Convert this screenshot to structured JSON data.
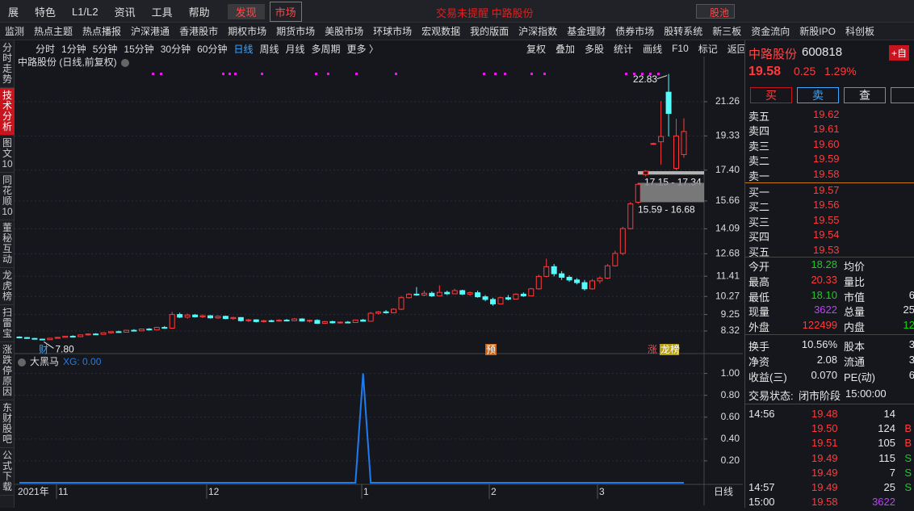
{
  "menu": [
    "展",
    "特色",
    "L1/L2",
    "资讯",
    "工具",
    "帮助",
    "发现",
    "市场"
  ],
  "marquee": "交易未提醒  中路股份",
  "search": "股池",
  "nav": [
    "监测",
    "热点主题",
    "热点播报",
    "沪深港通",
    "香港股市",
    "期权市场",
    "期货市场",
    "美股市场",
    "环球市场",
    "宏观数据",
    "我的版面",
    "沪深指数",
    "基金理财",
    "债券市场",
    "股转系统",
    "新三板",
    "资金流向",
    "新股IPO",
    "科创板"
  ],
  "periods": [
    "分时",
    "1分钟",
    "5分钟",
    "15分钟",
    "30分钟",
    "60分钟",
    "日线",
    "周线",
    "月线",
    "多周期",
    "更多 〉"
  ],
  "tools": [
    "复权",
    "叠加",
    "多股",
    "统计",
    "画线",
    "F10",
    "标记",
    "返回"
  ],
  "side_tabs": [
    "分时走势",
    "技术分析",
    "图文10",
    "同花顺10",
    "董秘互动",
    "龙虎榜",
    "扫雷宝",
    "涨跌停原因",
    "东财股吧",
    "公式下载"
  ],
  "chart_data": {
    "type": "candlestick",
    "title": "中路股份 (日线,前复权)",
    "ylim": [
      7.5,
      23.13
    ],
    "yticks": [
      21.26,
      19.33,
      {
        "value": 17.4,
        "label": "17.40"
      },
      15.66,
      14.09,
      12.68,
      11.41,
      10.27,
      9.25,
      8.32
    ],
    "up_color": "#ff3b3b",
    "down_color": "#54fcfc",
    "candles": [
      [
        7.98,
        8.02,
        7.92,
        7.95
      ],
      [
        7.95,
        7.98,
        7.88,
        7.9
      ],
      [
        7.9,
        7.93,
        7.84,
        7.86
      ],
      [
        7.86,
        7.88,
        7.8,
        7.83
      ],
      [
        7.83,
        7.93,
        7.82,
        7.91
      ],
      [
        7.91,
        7.98,
        7.89,
        7.96
      ],
      [
        7.96,
        8.04,
        7.94,
        8.02
      ],
      [
        8.02,
        8.08,
        7.98,
        8.0
      ],
      [
        8.0,
        8.12,
        7.99,
        8.1
      ],
      [
        8.1,
        8.18,
        8.06,
        8.15
      ],
      [
        8.15,
        8.2,
        8.1,
        8.13
      ],
      [
        8.13,
        8.24,
        8.11,
        8.22
      ],
      [
        8.22,
        8.3,
        8.18,
        8.28
      ],
      [
        8.28,
        8.34,
        8.22,
        8.25
      ],
      [
        8.25,
        8.38,
        8.23,
        8.36
      ],
      [
        8.36,
        8.42,
        8.3,
        8.33
      ],
      [
        8.33,
        8.45,
        8.31,
        8.43
      ],
      [
        8.43,
        8.48,
        8.35,
        8.38
      ],
      [
        8.38,
        8.55,
        8.36,
        8.52
      ],
      [
        8.52,
        8.6,
        8.45,
        8.48
      ],
      [
        8.48,
        9.4,
        8.46,
        9.25
      ],
      [
        9.25,
        9.35,
        9.05,
        9.1
      ],
      [
        9.1,
        9.3,
        9.02,
        9.22
      ],
      [
        9.22,
        9.28,
        9.08,
        9.12
      ],
      [
        9.12,
        9.25,
        9.05,
        9.18
      ],
      [
        9.18,
        9.22,
        9.02,
        9.06
      ],
      [
        9.06,
        9.2,
        9.0,
        9.15
      ],
      [
        9.15,
        9.18,
        8.98,
        9.02
      ],
      [
        9.02,
        9.12,
        8.95,
        9.08
      ],
      [
        9.08,
        9.1,
        8.85,
        8.9
      ],
      [
        8.9,
        9.0,
        8.82,
        8.95
      ],
      [
        8.95,
        8.98,
        8.8,
        8.85
      ],
      [
        8.85,
        8.95,
        8.8,
        8.9
      ],
      [
        8.9,
        8.96,
        8.82,
        8.88
      ],
      [
        8.88,
        8.98,
        8.84,
        8.93
      ],
      [
        8.93,
        9.0,
        8.86,
        8.9
      ],
      [
        8.9,
        9.05,
        8.88,
        9.0
      ],
      [
        9.0,
        9.04,
        8.85,
        8.88
      ],
      [
        8.88,
        8.96,
        8.8,
        8.92
      ],
      [
        8.92,
        8.98,
        8.72,
        8.75
      ],
      [
        8.75,
        8.88,
        8.72,
        8.85
      ],
      [
        8.85,
        8.9,
        8.74,
        8.78
      ],
      [
        8.78,
        8.86,
        8.74,
        8.82
      ],
      [
        8.82,
        8.88,
        8.76,
        8.8
      ],
      [
        8.8,
        8.96,
        8.78,
        8.94
      ],
      [
        8.94,
        9.0,
        8.84,
        8.87
      ],
      [
        8.87,
        9.4,
        8.85,
        9.32
      ],
      [
        9.32,
        9.45,
        9.25,
        9.4
      ],
      [
        9.4,
        9.5,
        9.3,
        9.35
      ],
      [
        9.35,
        9.6,
        9.32,
        9.55
      ],
      [
        9.55,
        10.3,
        9.5,
        10.2
      ],
      [
        10.2,
        10.45,
        10.15,
        10.4
      ],
      [
        10.4,
        10.8,
        10.3,
        10.35
      ],
      [
        10.35,
        10.6,
        10.28,
        10.45
      ],
      [
        10.45,
        10.55,
        10.25,
        10.3
      ],
      [
        10.3,
        10.9,
        10.28,
        10.5
      ],
      [
        10.5,
        10.6,
        10.35,
        10.42
      ],
      [
        10.42,
        10.7,
        10.4,
        10.6
      ],
      [
        10.6,
        10.65,
        10.35,
        10.4
      ],
      [
        10.4,
        10.55,
        10.3,
        10.48
      ],
      [
        10.48,
        10.6,
        10.2,
        10.25
      ],
      [
        10.25,
        10.35,
        10.0,
        10.1
      ],
      [
        10.1,
        10.2,
        9.75,
        9.85
      ],
      [
        9.85,
        10.25,
        9.82,
        10.2
      ],
      [
        10.2,
        10.35,
        10.05,
        10.12
      ],
      [
        10.12,
        10.45,
        10.1,
        10.4
      ],
      [
        10.4,
        10.5,
        10.25,
        10.3
      ],
      [
        10.3,
        10.75,
        10.28,
        10.7
      ],
      [
        10.7,
        11.5,
        10.65,
        11.4
      ],
      [
        11.4,
        12.4,
        11.35,
        11.95
      ],
      [
        11.95,
        12.1,
        11.4,
        11.55
      ],
      [
        11.55,
        11.7,
        11.2,
        11.35
      ],
      [
        11.35,
        11.45,
        11.1,
        11.2
      ],
      [
        11.2,
        11.3,
        10.95,
        11.05
      ],
      [
        11.05,
        11.2,
        10.6,
        10.7
      ],
      [
        10.7,
        11.25,
        10.65,
        11.15
      ],
      [
        11.15,
        11.4,
        11.0,
        11.3
      ],
      [
        11.3,
        12.1,
        11.25,
        12.0
      ],
      [
        12.0,
        12.85,
        11.95,
        12.7
      ],
      [
        12.7,
        14.2,
        12.6,
        14.1
      ],
      [
        14.1,
        15.6,
        14.05,
        15.5
      ],
      [
        15.59,
        16.68,
        15.5,
        16.6
      ],
      [
        17.15,
        17.4,
        17.05,
        17.34
      ],
      [
        18.9,
        18.95,
        18.85,
        18.9
      ],
      [
        19.0,
        21.3,
        17.7,
        19.3
      ],
      [
        21.8,
        22.83,
        19.3,
        20.6
      ],
      [
        17.5,
        20.3,
        17.4,
        19.33
      ],
      [
        18.28,
        20.33,
        18.1,
        19.58
      ]
    ],
    "high_label": "22.83",
    "low_label": "7.80",
    "zones": [
      {
        "label": "17.15 - 17.34",
        "range": [
          17.15,
          17.34
        ]
      },
      {
        "label": "15.59 - 16.68",
        "range": [
          15.59,
          16.68
        ]
      }
    ],
    "markers": [
      "财",
      "预",
      "涨",
      "龙榜"
    ],
    "x_labels": [
      "2021年",
      "11",
      "12",
      "1",
      "2",
      "3"
    ],
    "period_label": "日线",
    "indicator": {
      "name": "大黑马",
      "value_text": "XG: 0.00",
      "color": "#1e7cf0",
      "ylim": [
        0,
        1.13
      ],
      "yticks": [
        {
          "value": 1,
          "label": "1.00"
        },
        {
          "value": 0.8,
          "label": "0.80"
        },
        {
          "value": 0.6,
          "label": "0.60"
        },
        {
          "value": 0.4,
          "label": "0.40"
        },
        {
          "value": 0.2,
          "label": "0.20"
        }
      ],
      "values": [
        0,
        0,
        0,
        0,
        0,
        0,
        0,
        0,
        0,
        0,
        0,
        0,
        0,
        0,
        0,
        0,
        0,
        0,
        0,
        0,
        0,
        0,
        0,
        0,
        0,
        0,
        0,
        0,
        0,
        0,
        0,
        0,
        0,
        0,
        0,
        0,
        0,
        0,
        0,
        0,
        0,
        0,
        0,
        0,
        0,
        1,
        0,
        0,
        0,
        0,
        0,
        0,
        0,
        0,
        0,
        0,
        0,
        0,
        0,
        0,
        0,
        0,
        0,
        0,
        0,
        0,
        0,
        0,
        0,
        0,
        0,
        0,
        0,
        0,
        0,
        0,
        0,
        0,
        0,
        0,
        0,
        0,
        0,
        0,
        0,
        0,
        0,
        0
      ]
    }
  },
  "quote": {
    "name": "中路股份",
    "code": "600818",
    "price": "19.58",
    "change": "0.25",
    "pct": "1.29%",
    "tag": "+自"
  },
  "buttons": [
    "买",
    "卖",
    "查"
  ],
  "asks": [
    [
      "卖五",
      "19.62"
    ],
    [
      "卖四",
      "19.61"
    ],
    [
      "卖三",
      "19.60"
    ],
    [
      "卖二",
      "19.59"
    ],
    [
      "卖一",
      "19.58"
    ]
  ],
  "bids": [
    [
      "买一",
      "19.57"
    ],
    [
      "买二",
      "19.56"
    ],
    [
      "买三",
      "19.55"
    ],
    [
      "买四",
      "19.54"
    ],
    [
      "买五",
      "19.53"
    ]
  ],
  "stats": [
    {
      "k1": "今开",
      "v1": "18.28",
      "k2": "均价"
    },
    {
      "k1": "最高",
      "v1": "20.33",
      "k2": "量比"
    },
    {
      "k1": "最低",
      "v1": "18.10",
      "k2": "市值",
      "v2": "6"
    },
    {
      "k1": "现量",
      "v1": "3622",
      "k2": "总量",
      "v2": "25"
    },
    {
      "k1": "外盘",
      "v1": "122499",
      "k2": "内盘",
      "v2": "12"
    },
    {
      "k1": "换手",
      "v1": "10.56%",
      "k2": "股本",
      "v2": "3"
    },
    {
      "k1": "净资",
      "v1": "2.08",
      "k2": "流通",
      "v2": "3"
    },
    {
      "k1": "收益(三)",
      "v1": "0.070",
      "k2": "PE(动)",
      "v2": "6"
    }
  ],
  "status": {
    "label": "交易状态:",
    "value": "闭市阶段",
    "time": "15:00:00"
  },
  "ticks": [
    {
      "time": "14:56",
      "price": "19.48",
      "vol": "14"
    },
    {
      "price": "19.50",
      "vol": "124",
      "side": "B"
    },
    {
      "price": "19.51",
      "vol": "105",
      "side": "B"
    },
    {
      "price": "19.49",
      "vol": "115",
      "side": "S"
    },
    {
      "price": "19.49",
      "vol": "7",
      "side": "S"
    },
    {
      "time": "14:57",
      "price": "19.49",
      "vol": "25",
      "side": "S"
    },
    {
      "time": "15:00",
      "price": "19.58",
      "vol": "3622"
    }
  ]
}
